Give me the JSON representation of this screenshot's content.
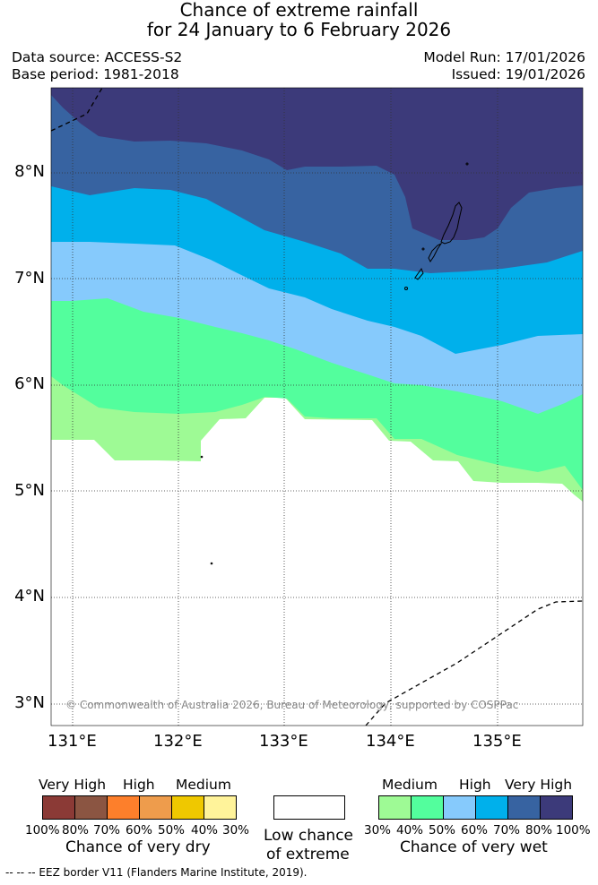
{
  "title": {
    "line1": "Chance of extreme rainfall",
    "line2": "for 24 January to 6 February 2026"
  },
  "meta": {
    "data_source": "Data source: ACCESS-S2",
    "base_period": "Base period: 1981-2018",
    "model_run": "Model Run: 17/01/2026",
    "issued": "Issued: 19/01/2026"
  },
  "map": {
    "lon_range": [
      130.8,
      135.8
    ],
    "lat_range": [
      2.8,
      8.8
    ],
    "lon_ticks": [
      {
        "value": 131,
        "label": "131°E"
      },
      {
        "value": 132,
        "label": "132°E"
      },
      {
        "value": 133,
        "label": "133°E"
      },
      {
        "value": 134,
        "label": "134°E"
      },
      {
        "value": 135,
        "label": "135°E"
      }
    ],
    "lat_ticks": [
      {
        "value": 8,
        "label": "8°N"
      },
      {
        "value": 7,
        "label": "7°N"
      },
      {
        "value": 6,
        "label": "6°N"
      },
      {
        "value": 5,
        "label": "5°N"
      },
      {
        "value": 4,
        "label": "4°N"
      },
      {
        "value": 3,
        "label": "3°N"
      }
    ],
    "copyright": "© Commonwealth of Australia 2026, Bureau of Meteorology, supported by COSPPac",
    "colors": {
      "wet_80_100": "#3c3a7a",
      "wet_70_80": "#3763a1",
      "wet_60_70": "#00b0eb",
      "wet_50_60": "#86cafc",
      "wet_40_50": "#53fe9d",
      "wet_30_40": "#9efa95",
      "low": "#ffffff"
    }
  },
  "legend": {
    "dry": {
      "categories": [
        "Very High",
        "High",
        "Medium"
      ],
      "ticks": [
        "100%",
        "80%",
        "70%",
        "60%",
        "50%",
        "40%",
        "30%"
      ],
      "colors": [
        "#8b3a36",
        "#8b5542",
        "#fd7f2b",
        "#ee9c4c",
        "#efc800",
        "#fff39a"
      ],
      "label": "Chance of very dry"
    },
    "low": {
      "line1": "Low chance",
      "line2": "of extreme"
    },
    "wet": {
      "categories": [
        "Medium",
        "High",
        "Very High"
      ],
      "ticks": [
        "30%",
        "40%",
        "50%",
        "60%",
        "70%",
        "80%",
        "100%"
      ],
      "colors": [
        "#9efa95",
        "#53fe9d",
        "#86cafc",
        "#00b0eb",
        "#3763a1",
        "#3c3a7a"
      ],
      "label": "Chance of very wet"
    }
  },
  "footer": "-- -- -- EEZ border V11 (Flanders Marine Institute, 2019)."
}
